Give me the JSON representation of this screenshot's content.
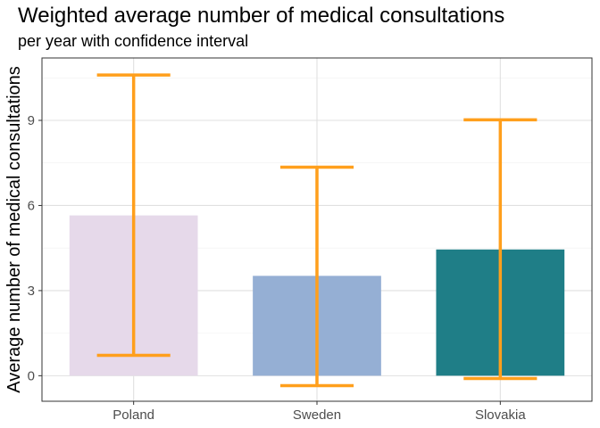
{
  "chart_data": {
    "type": "bar",
    "title": "Weighted average number of medical consultations",
    "subtitle": "per year with confidence interval",
    "xlabel": "",
    "ylabel": "Average number of medical consultations",
    "categories": [
      "Poland",
      "Sweden",
      "Slovakia"
    ],
    "values": [
      5.65,
      3.52,
      4.45
    ],
    "ci_lower": [
      0.72,
      -0.35,
      -0.1
    ],
    "ci_upper": [
      10.6,
      7.35,
      9.02
    ],
    "ylim": [
      -0.9,
      11.2
    ],
    "yticks": [
      0,
      3,
      6,
      9
    ],
    "ytick_labels": [
      "0",
      "3",
      "6",
      "9"
    ],
    "grid": true,
    "legend": "none",
    "colors": {
      "bars": [
        "#e6d9ea",
        "#95afd4",
        "#1f7e87"
      ],
      "error_bars": "#ff9f1c",
      "grid_major": "#e0e0e0",
      "grid_minor": "#f0f0f0",
      "panel_border": "#333333"
    }
  }
}
